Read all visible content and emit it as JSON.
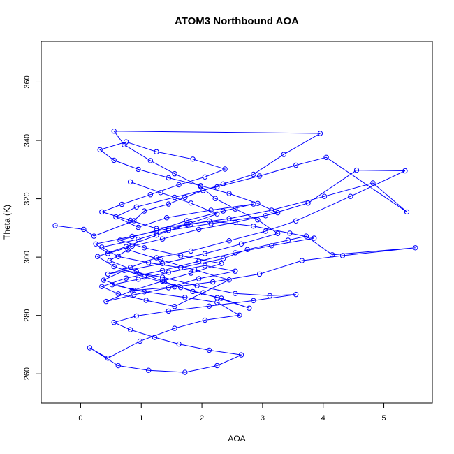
{
  "chart_data": {
    "type": "line",
    "title": "ATOM3 Northbound AOA",
    "xlabel": "AOA",
    "ylabel": "Theta (K)",
    "xlim": [
      -0.65,
      5.8
    ],
    "ylim": [
      250,
      374
    ],
    "x_ticks": [
      0,
      1,
      2,
      3,
      4,
      5
    ],
    "y_ticks": [
      260,
      280,
      300,
      320,
      340,
      360
    ],
    "grid": false,
    "legend": "none",
    "marker": "open-circle",
    "series": [
      {
        "color": "#0000ff",
        "x": [
          -0.42,
          0.05,
          0.22,
          0.88,
          1.05,
          1.45,
          1.72,
          2.02,
          2.35,
          2.85,
          3.35,
          3.95,
          0.55,
          0.72,
          1.15,
          1.55,
          1.98,
          2.22,
          2.55,
          2.92,
          3.25,
          2.65,
          2.05,
          1.35,
          0.45,
          0.82,
          1.25,
          1.82,
          2.45,
          3.05,
          3.55,
          4.45,
          5.35,
          4.55,
          3.75,
          3.05,
          2.15,
          1.45,
          0.95,
          0.35,
          0.62,
          1.12,
          1.65,
          2.35,
          2.75,
          3.42,
          3.72,
          4.15,
          5.52,
          4.32,
          3.65,
          2.95,
          2.18,
          1.55,
          0.88,
          0.38,
          0.72,
          1.35,
          1.92,
          2.55,
          3.12,
          3.55,
          2.85,
          2.12,
          1.45,
          0.92,
          0.55,
          0.82,
          1.22,
          1.62,
          2.12,
          2.65,
          2.25,
          1.72,
          1.12,
          0.62,
          0.15,
          0.45,
          0.98,
          1.55,
          2.05,
          2.62,
          2.25,
          1.72,
          1.05,
          0.52,
          0.95,
          1.45,
          2.05,
          2.55,
          1.95,
          1.45,
          0.88,
          0.42,
          0.85,
          1.35,
          1.82,
          2.32,
          1.65,
          1.05,
          0.65,
          1.25,
          1.75,
          2.35,
          2.85,
          2.15,
          1.42,
          0.95,
          0.58,
          0.92,
          1.55,
          2.25,
          2.95,
          3.55,
          4.05,
          5.38,
          4.82,
          4.02,
          3.15,
          2.45,
          1.82,
          1.25,
          0.82,
          0.35,
          0.68,
          1.15,
          1.62,
          2.05,
          2.38,
          1.85,
          1.25,
          0.75,
          0.32,
          0.55,
          0.95,
          1.45,
          1.98,
          2.45,
          2.92,
          3.25,
          2.55,
          1.95,
          1.35,
          0.85,
          0.45,
          0.25,
          0.85,
          1.45,
          2.12,
          2.85,
          3.45,
          3.85,
          3.15,
          2.55,
          1.95,
          1.35,
          0.75,
          0.35,
          0.62,
          1.08,
          1.55,
          2.02,
          2.45,
          1.88,
          1.32,
          0.78,
          0.48,
          0.92,
          1.38,
          1.85,
          2.32,
          2.78,
          2.25,
          1.65,
          1.05,
          0.55,
          0.28,
          0.75,
          1.25,
          1.75,
          2.25,
          1.82,
          1.32,
          0.82
        ],
        "y": [
          310.8,
          309.5,
          307.2,
          312.5,
          315.8,
          318.2,
          320.5,
          322.8,
          325.1,
          328.4,
          335.2,
          342.4,
          343.2,
          338.5,
          333.1,
          328.6,
          324.2,
          320.1,
          316.5,
          312.8,
          308.1,
          304.5,
          301.2,
          297.8,
          294.2,
          296.5,
          299.8,
          302.1,
          305.6,
          308.9,
          312.4,
          320.8,
          329.6,
          329.8,
          318.5,
          314.2,
          311.5,
          309.2,
          306.1,
          303.4,
          300.2,
          298.1,
          296.4,
          299.5,
          302.6,
          305.8,
          307.2,
          300.8,
          303.2,
          300.5,
          298.8,
          294.2,
          291.5,
          289.8,
          288.6,
          292.1,
          295.4,
          293.1,
          290.2,
          287.5,
          286.8,
          287.2,
          285.1,
          283.2,
          281.5,
          279.8,
          277.6,
          275.1,
          272.5,
          270.2,
          268.1,
          266.5,
          262.8,
          260.5,
          261.2,
          262.8,
          268.9,
          265.4,
          271.2,
          275.6,
          278.4,
          280.1,
          284.5,
          286.2,
          288.1,
          290.5,
          292.4,
          294.8,
          297.1,
          295.2,
          292.6,
          289.5,
          287.1,
          284.8,
          288.5,
          291.8,
          294.5,
          297.8,
          300.5,
          303.2,
          305.8,
          309.1,
          312.5,
          315.8,
          318.2,
          316.1,
          313.5,
          310.2,
          313.8,
          317.2,
          320.5,
          324.1,
          327.8,
          331.5,
          334.2,
          315.5,
          325.4,
          320.8,
          316.1,
          313.2,
          311.4,
          309.8,
          312.6,
          315.5,
          318.1,
          321.4,
          324.8,
          327.5,
          330.2,
          333.6,
          336.1,
          339.5,
          336.8,
          333.2,
          330.1,
          327.2,
          324.5,
          321.8,
          318.4,
          315.2,
          311.9,
          309.5,
          306.2,
          303.8,
          301.2,
          304.5,
          307.1,
          309.8,
          312.4,
          310.6,
          308.2,
          306.5,
          303.9,
          301.5,
          298.6,
          295.4,
          292.8,
          289.9,
          287.4,
          285.2,
          283.1,
          287.8,
          292.2,
          295.6,
          299.1,
          302.5,
          298.8,
          295.1,
          291.6,
          288.2,
          285.9,
          282.5,
          286.1,
          289.6,
          293.2,
          296.8,
          300.2,
          303.6,
          307.5,
          311.2,
          314.8,
          318.5,
          322.1,
          325.8
        ]
      }
    ]
  }
}
